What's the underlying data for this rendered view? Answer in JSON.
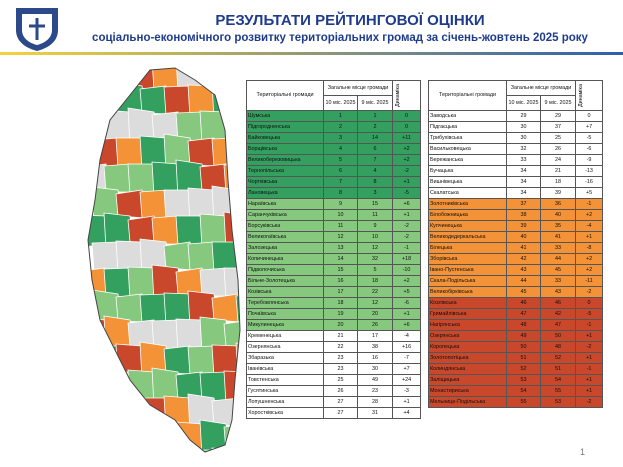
{
  "header": {
    "title": "РЕЗУЛЬТАТИ РЕЙТИНГОВОЇ ОЦІНКИ",
    "subtitle": "соціально-економічного розвитку територіальних громад за січень-жовтень 2025 року"
  },
  "tables": [
    {
      "columns": {
        "name": "Територіальні громади",
        "place": "Загальне місце громади",
        "current": "10 міс. 2025",
        "previous": "9 міс. 2025",
        "change": "Динаміка"
      },
      "rows": [
        [
          "Шумська",
          "1",
          "1",
          "0"
        ],
        [
          "Підгородненська",
          "2",
          "2",
          "0"
        ],
        [
          "Байковецька",
          "3",
          "14",
          "+11"
        ],
        [
          "Борщівська",
          "4",
          "6",
          "+2"
        ],
        [
          "Великоберезовицька",
          "5",
          "7",
          "+2"
        ],
        [
          "Тернопільська",
          "6",
          "4",
          "-2"
        ],
        [
          "Чортківська",
          "7",
          "8",
          "+1"
        ],
        [
          "Лановецька",
          "8",
          "3",
          "-5"
        ],
        [
          "Нараївська",
          "9",
          "15",
          "+6"
        ],
        [
          "Саранчуківська",
          "10",
          "11",
          "+1"
        ],
        [
          "Борсуківська",
          "11",
          "9",
          "-2"
        ],
        [
          "Великогаївська",
          "12",
          "10",
          "-2"
        ],
        [
          "Залозецька",
          "13",
          "12",
          "-1"
        ],
        [
          "Копичинецька",
          "14",
          "32",
          "+18"
        ],
        [
          "Підволочиська",
          "15",
          "5",
          "-10"
        ],
        [
          "Більче-Золотецька",
          "16",
          "18",
          "+2"
        ],
        [
          "Козівська",
          "17",
          "22",
          "+5"
        ],
        [
          "Теребовлянська",
          "18",
          "12",
          "-6"
        ],
        [
          "Почаївська",
          "19",
          "20",
          "+1"
        ],
        [
          "Микулинецька",
          "20",
          "26",
          "+6"
        ],
        [
          "Кременецька",
          "21",
          "17",
          "-4"
        ],
        [
          "Озернянська",
          "22",
          "38",
          "+16"
        ],
        [
          "Збаразька",
          "23",
          "16",
          "-7"
        ],
        [
          "Іванівська",
          "23",
          "30",
          "+7"
        ],
        [
          "Товстенська",
          "25",
          "49",
          "+24"
        ],
        [
          "Гусятинська",
          "26",
          "23",
          "-3"
        ],
        [
          "Лопушненська",
          "27",
          "28",
          "+1"
        ],
        [
          "Хоростківська",
          "27",
          "31",
          "+4"
        ]
      ],
      "row_colors": [
        "#33a060",
        "#33a060",
        "#33a060",
        "#33a060",
        "#33a060",
        "#33a060",
        "#33a060",
        "#33a060",
        "#86c97e",
        "#86c97e",
        "#86c97e",
        "#86c97e",
        "#86c97e",
        "#86c97e",
        "#86c97e",
        "#86c97e",
        "#86c97e",
        "#86c97e",
        "#86c97e",
        "#86c97e",
        "#ffffff",
        "#ffffff",
        "#ffffff",
        "#ffffff",
        "#ffffff",
        "#ffffff",
        "#ffffff",
        "#ffffff"
      ]
    },
    {
      "columns": {
        "name": "Територіальні громади",
        "place": "Загальне місце громади",
        "current": "10 міс. 2025",
        "previous": "9 міс. 2025",
        "change": "Динаміка"
      },
      "rows": [
        [
          "Заводська",
          "29",
          "29",
          "0"
        ],
        [
          "Підгаєцька",
          "30",
          "37",
          "+7"
        ],
        [
          "Трибухівська",
          "30",
          "25",
          "-5"
        ],
        [
          "Васильковецька",
          "32",
          "26",
          "-6"
        ],
        [
          "Бережанська",
          "33",
          "24",
          "-9"
        ],
        [
          "Бучацька",
          "34",
          "21",
          "-13"
        ],
        [
          "Вишнівецька",
          "34",
          "18",
          "-16"
        ],
        [
          "Скалатська",
          "34",
          "39",
          "+5"
        ],
        [
          "Золотниківська",
          "37",
          "36",
          "-1"
        ],
        [
          "Білобожницька",
          "38",
          "40",
          "+2"
        ],
        [
          "Купчинецька",
          "39",
          "35",
          "-4"
        ],
        [
          "Великодедеркальська",
          "40",
          "41",
          "+1"
        ],
        [
          "Білецька",
          "41",
          "33",
          "-8"
        ],
        [
          "Зборівська",
          "42",
          "44",
          "+2"
        ],
        [
          "Івано-Пустенська",
          "43",
          "45",
          "+2"
        ],
        [
          "Скала-Подільська",
          "44",
          "33",
          "-11"
        ],
        [
          "Великобірківська",
          "45",
          "43",
          "-2"
        ],
        [
          "Козлівська",
          "46",
          "46",
          "0"
        ],
        [
          "Гримайлівська",
          "47",
          "42",
          "-5"
        ],
        [
          "Нагірянська",
          "48",
          "47",
          "-1"
        ],
        [
          "Озерянська",
          "49",
          "50",
          "+1"
        ],
        [
          "Коропецька",
          "50",
          "48",
          "-2"
        ],
        [
          "Золотопотіцька",
          "51",
          "52",
          "+1"
        ],
        [
          "Колиндянська",
          "52",
          "51",
          "-1"
        ],
        [
          "Заліщицька",
          "53",
          "54",
          "+1"
        ],
        [
          "Монастириська",
          "54",
          "55",
          "+1"
        ],
        [
          "Мельнице-Подільська",
          "55",
          "53",
          "-2"
        ]
      ],
      "row_colors": [
        "#ffffff",
        "#ffffff",
        "#ffffff",
        "#ffffff",
        "#ffffff",
        "#ffffff",
        "#ffffff",
        "#ffffff",
        "#f39237",
        "#f39237",
        "#f39237",
        "#f39237",
        "#f39237",
        "#f39237",
        "#f39237",
        "#f39237",
        "#f39237",
        "#c9472a",
        "#c9472a",
        "#c9472a",
        "#c9472a",
        "#c9472a",
        "#c9472a",
        "#c9472a",
        "#c9472a",
        "#c9472a",
        "#c9472a"
      ]
    }
  ],
  "page_number": "1"
}
